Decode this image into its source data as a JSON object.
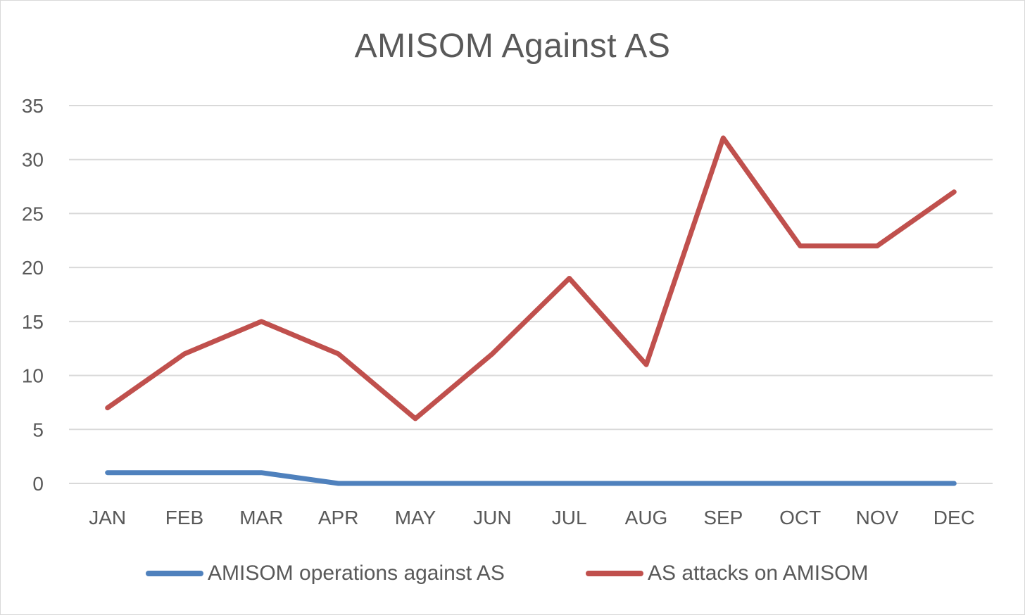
{
  "chart_data": {
    "type": "line",
    "title": "AMISOM Against AS",
    "categories": [
      "JAN",
      "FEB",
      "MAR",
      "APR",
      "MAY",
      "JUN",
      "JUL",
      "AUG",
      "SEP",
      "OCT",
      "NOV",
      "DEC"
    ],
    "y_ticks": [
      "0",
      "5",
      "10",
      "15",
      "20",
      "25",
      "30",
      "35"
    ],
    "ylim": [
      0,
      35
    ],
    "grid": true,
    "legend_position": "bottom",
    "series": [
      {
        "name": "AMISOM operations against AS",
        "color": "#4f81bd",
        "values": [
          1,
          1,
          1,
          0,
          0,
          0,
          0,
          0,
          0,
          0,
          0,
          0
        ]
      },
      {
        "name": "AS attacks on AMISOM",
        "color": "#c0504d",
        "values": [
          7,
          12,
          15,
          12,
          6,
          12,
          19,
          11,
          32,
          22,
          22,
          27
        ]
      }
    ]
  }
}
